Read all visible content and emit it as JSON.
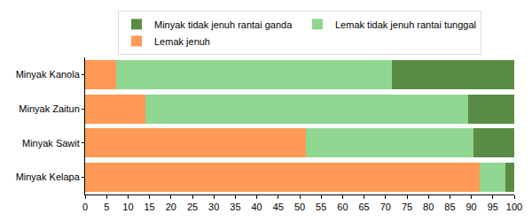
{
  "chart_data": {
    "type": "bar",
    "orientation": "horizontal",
    "stacked": true,
    "categories": [
      "Minyak Kanola",
      "Minyak Zaitun",
      "Minyak Sawit",
      "Minyak Kelapa"
    ],
    "series": [
      {
        "name": "Lemak jenuh",
        "color": "#ff9955",
        "values": [
          7.3,
          14,
          51.5,
          92
        ]
      },
      {
        "name": "Lemak tidak jenuh rantai tunggal",
        "color": "#90d690",
        "values": [
          64.2,
          75.2,
          39,
          6
        ]
      },
      {
        "name": "Minyak tidak jenuh rantai ganda",
        "color": "#5a8c46",
        "values": [
          28.5,
          10.8,
          9.5,
          2
        ]
      }
    ],
    "xlim": [
      0,
      100
    ],
    "xticks": [
      0,
      5,
      10,
      15,
      20,
      25,
      30,
      35,
      40,
      45,
      50,
      55,
      60,
      65,
      70,
      75,
      80,
      85,
      90,
      95,
      100
    ],
    "grid": false,
    "legend": "top"
  }
}
